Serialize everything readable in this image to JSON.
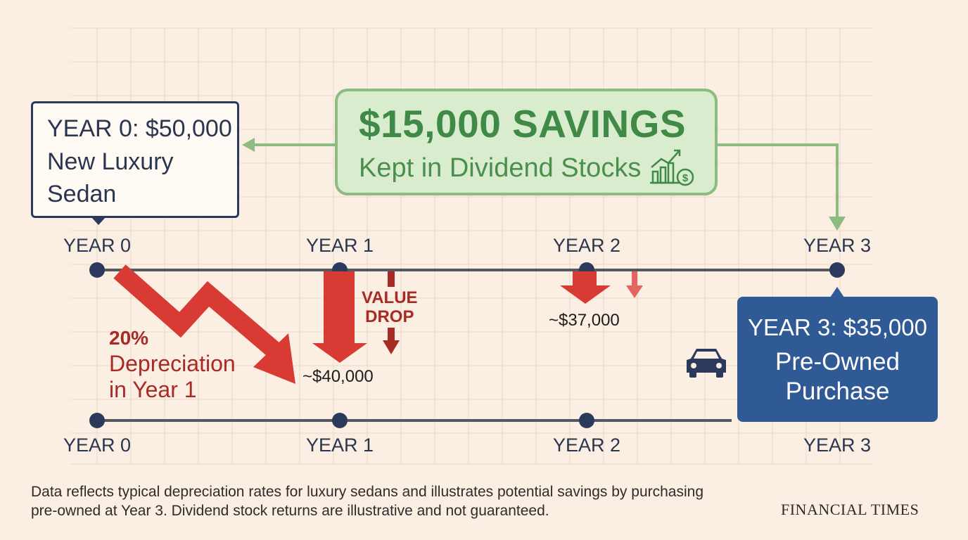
{
  "callout_new": {
    "line1": "YEAR 0: $50,000",
    "line2": "New Luxury Sedan"
  },
  "savings": {
    "title": "$15,000 SAVINGS",
    "subtitle": "Kept in Dividend Stocks",
    "icon": "stocks-growth-icon"
  },
  "callout_used": {
    "line1": "YEAR 3: $35,000",
    "line2": "Pre-Owned Purchase",
    "icon": "car-icon"
  },
  "timeline_top": {
    "years": [
      "YEAR 0",
      "YEAR 1",
      "YEAR 2",
      "YEAR 3"
    ]
  },
  "timeline_bottom": {
    "years": [
      "YEAR 0",
      "YEAR 1",
      "YEAR 2",
      "YEAR 3"
    ]
  },
  "values": {
    "year1": "~$40,000",
    "year2": "~$37,000"
  },
  "depreciation": {
    "percent": "20%",
    "line1": "Depreciation",
    "line2": "in Year 1"
  },
  "value_drop": {
    "line1": "VALUE",
    "line2": "DROP"
  },
  "footnote": "Data reflects typical depreciation rates for luxury sedans and illustrates potential savings by purchasing pre-owned at Year 3. Dividend stock returns are illustrative and not guaranteed.",
  "brand": "FINANCIAL TIMES",
  "colors": {
    "background": "#fbeee2",
    "navy": "#2b3a5c",
    "green": "#3f8a47",
    "green_fill": "#d9edce",
    "red": "#d83a34",
    "dark_red": "#a82a25",
    "blue": "#2f5a95"
  }
}
